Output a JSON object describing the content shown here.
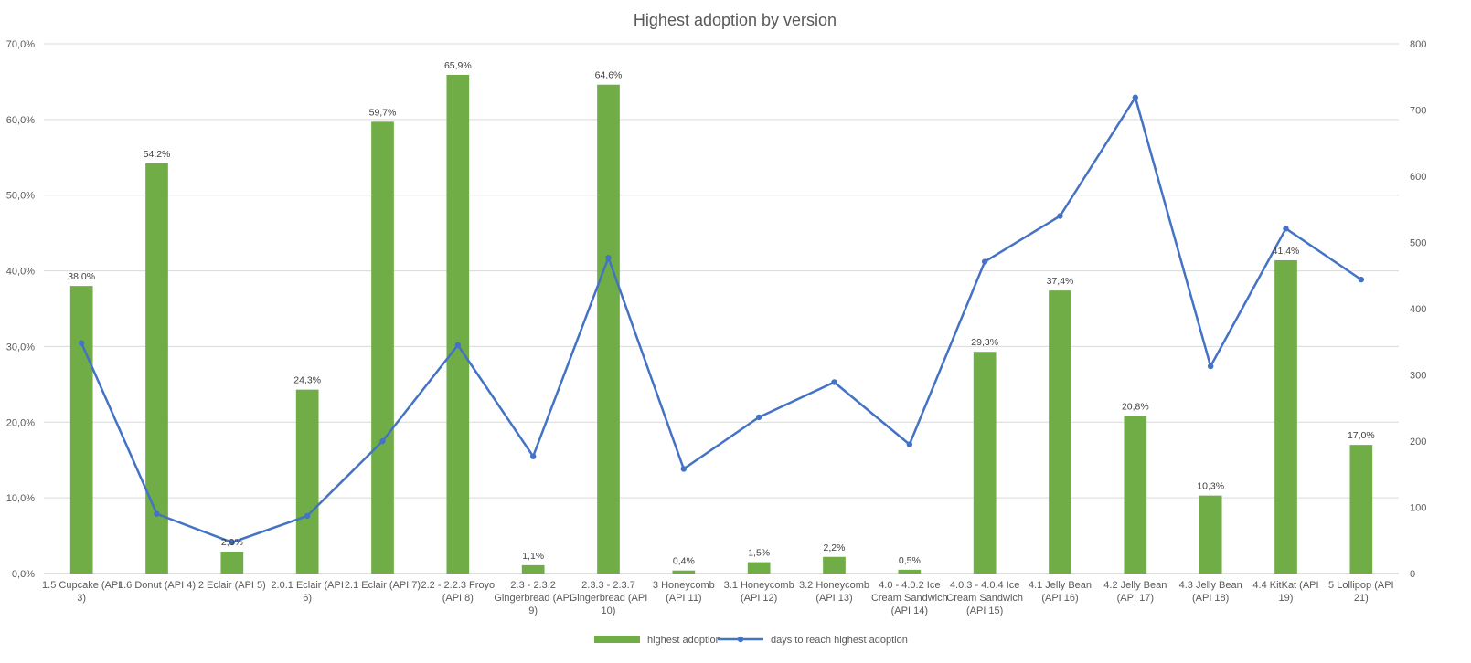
{
  "chart_data": {
    "type": "bar+line",
    "title": "Highest adoption by version",
    "categories": [
      [
        "1.5 Cupcake (API",
        "3)"
      ],
      [
        "1.6 Donut (API 4)"
      ],
      [
        "2 Eclair (API 5)"
      ],
      [
        "2.0.1 Eclair (API",
        "6)"
      ],
      [
        "2.1 Eclair (API 7)"
      ],
      [
        "2.2 - 2.2.3 Froyo",
        "(API 8)"
      ],
      [
        "2.3 - 2.3.2",
        "Gingerbread (API",
        "9)"
      ],
      [
        "2.3.3 - 2.3.7",
        "Gingerbread (API",
        "10)"
      ],
      [
        "3 Honeycomb",
        "(API 11)"
      ],
      [
        "3.1 Honeycomb",
        "(API 12)"
      ],
      [
        "3.2 Honeycomb",
        "(API 13)"
      ],
      [
        "4.0 - 4.0.2 Ice",
        "Cream Sandwich",
        "(API 14)"
      ],
      [
        "4.0.3 - 4.0.4 Ice",
        "Cream Sandwich",
        "(API 15)"
      ],
      [
        "4.1 Jelly Bean",
        "(API 16)"
      ],
      [
        "4.2 Jelly Bean",
        "(API 17)"
      ],
      [
        "4.3 Jelly Bean",
        "(API 18)"
      ],
      [
        "4.4 KitKat (API",
        "19)"
      ],
      [
        "5 Lollipop (API",
        "21)"
      ]
    ],
    "series": [
      {
        "name": "highest adoption",
        "type": "bar",
        "axis": "left",
        "color": "#70ad47",
        "values": [
          38.0,
          54.2,
          2.9,
          24.3,
          59.7,
          65.9,
          1.1,
          64.6,
          0.4,
          1.5,
          2.2,
          0.5,
          29.3,
          37.4,
          20.8,
          10.3,
          41.4,
          17.0
        ],
        "labels": [
          "38,0%",
          "54,2%",
          "2,9%",
          "24,3%",
          "59,7%",
          "65,9%",
          "1,1%",
          "64,6%",
          "0,4%",
          "1,5%",
          "2,2%",
          "0,5%",
          "29,3%",
          "37,4%",
          "20,8%",
          "10,3%",
          "41,4%",
          "17,0%"
        ]
      },
      {
        "name": "days to reach highest adoption",
        "type": "line",
        "axis": "right",
        "color": "#4472c4",
        "values": [
          348,
          90,
          47,
          87,
          200,
          345,
          177,
          477,
          158,
          236,
          289,
          195,
          471,
          540,
          719,
          313,
          521,
          444
        ]
      }
    ],
    "y_left": {
      "min": 0,
      "max": 70,
      "step": 10,
      "tick_labels": [
        "0,0%",
        "10,0%",
        "20,0%",
        "30,0%",
        "40,0%",
        "50,0%",
        "60,0%",
        "70,0%"
      ]
    },
    "y_right": {
      "min": 0,
      "max": 800,
      "step": 100,
      "tick_labels": [
        "0",
        "100",
        "200",
        "300",
        "400",
        "500",
        "600",
        "700",
        "800"
      ]
    },
    "grid": true,
    "legend": "bottom"
  }
}
